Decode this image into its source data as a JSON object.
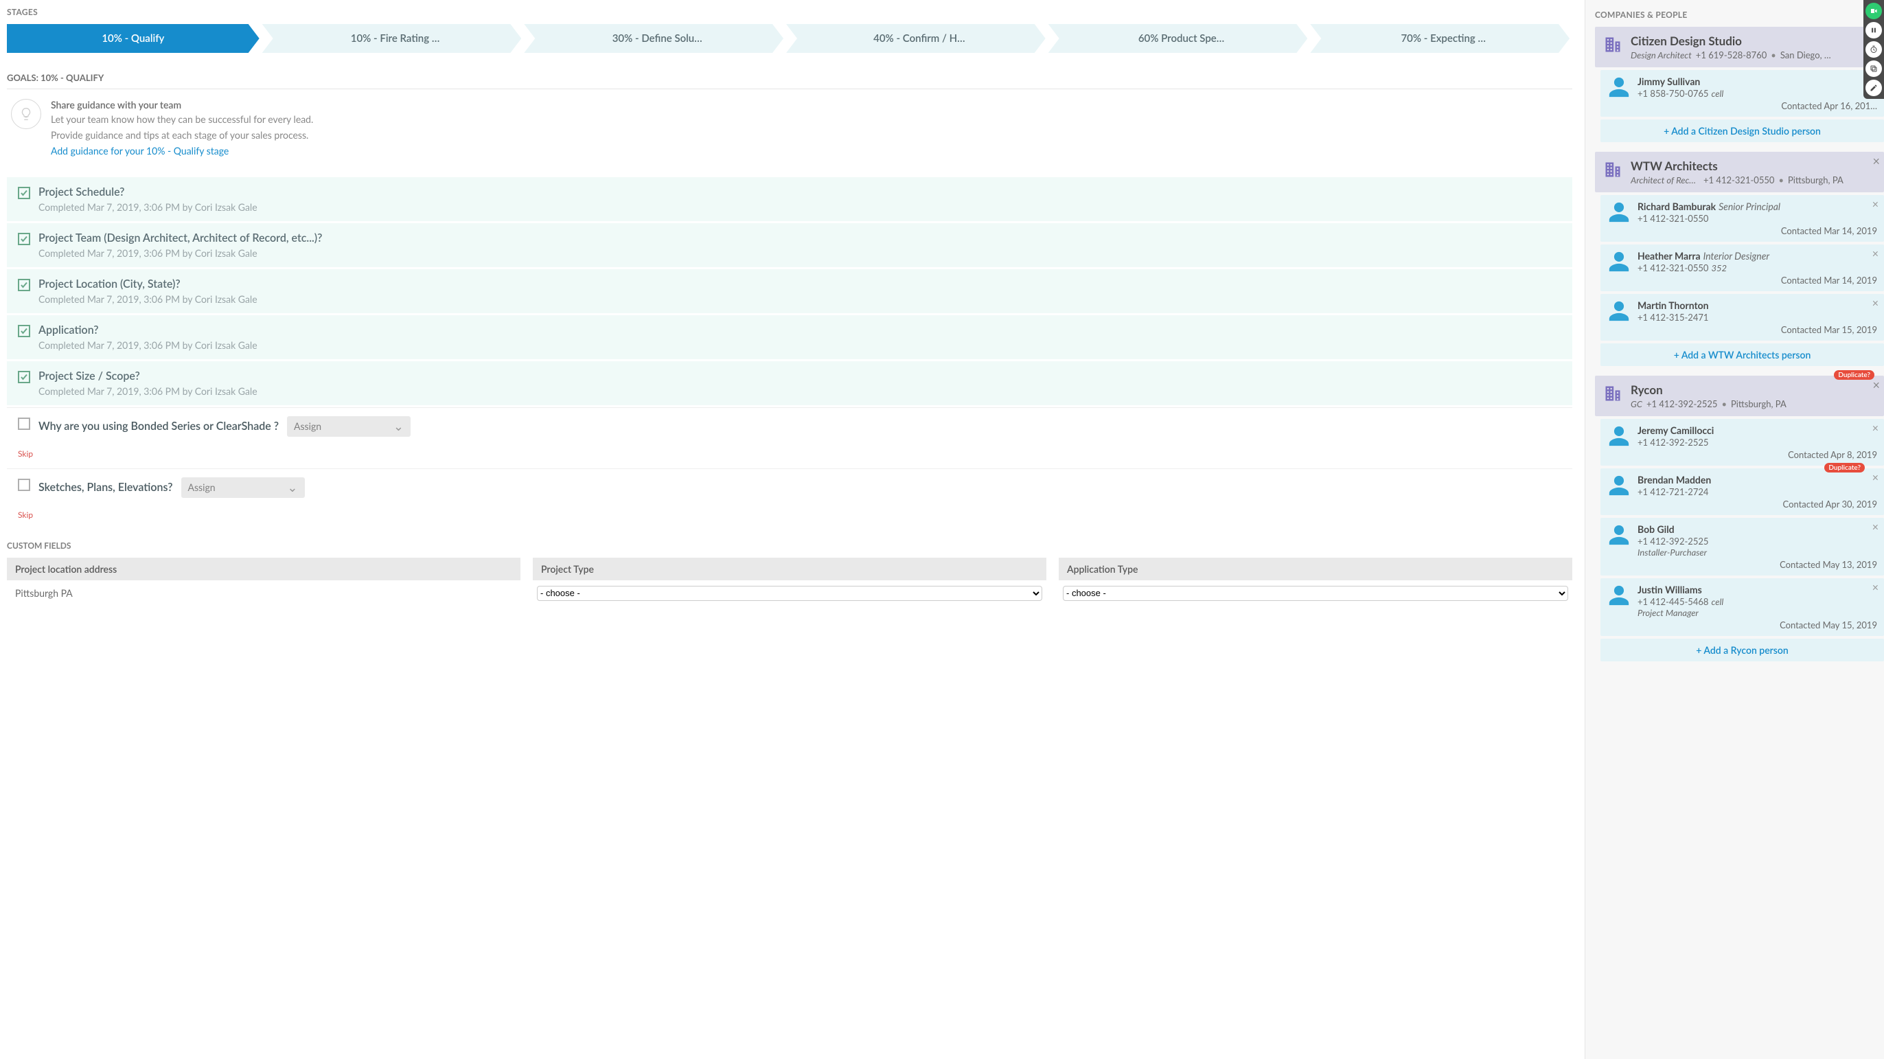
{
  "labels": {
    "stages": "STAGES",
    "goals_prefix": "GOALS: ",
    "companies_people": "COMPANIES & PEOPLE",
    "custom_fields": "CUSTOM FIELDS",
    "assign": "Assign",
    "skip": "Skip",
    "add_person_prefix": "+  Add a ",
    "add_person_suffix": " person",
    "choose": "- choose -"
  },
  "stages": [
    {
      "label": "10% - Qualify",
      "active": true
    },
    {
      "label": "10% - Fire Rating …",
      "active": false
    },
    {
      "label": "30% - Define Solu…",
      "active": false
    },
    {
      "label": "40% - Confirm / H…",
      "active": false
    },
    {
      "label": "60% Product Spe…",
      "active": false
    },
    {
      "label": "70% - Expecting …",
      "active": false
    }
  ],
  "current_stage_name": "10% - QUALIFY",
  "guidance": {
    "title": "Share guidance with your team",
    "body_line1": "Let your team know how they can be successful for every lead.",
    "body_line2": "Provide guidance and tips at each stage of your sales process.",
    "link": "Add guidance for your 10% - Qualify stage"
  },
  "goals": [
    {
      "title": "Project Schedule?",
      "done": true,
      "meta": "Completed Mar 7, 2019, 3:06 PM by Cori Izsak Gale"
    },
    {
      "title": "Project Team (Design Architect, Architect of Record, etc...)?",
      "done": true,
      "meta": "Completed Mar 7, 2019, 3:06 PM by Cori Izsak Gale"
    },
    {
      "title": "Project Location (City, State)?",
      "done": true,
      "meta": "Completed Mar 7, 2019, 3:06 PM by Cori Izsak Gale"
    },
    {
      "title": "Application?",
      "done": true,
      "meta": "Completed Mar 7, 2019, 3:06 PM by Cori Izsak Gale"
    },
    {
      "title": "Project Size / Scope?",
      "done": true,
      "meta": "Completed Mar 7, 2019, 3:06 PM by Cori Izsak Gale"
    },
    {
      "title": "Why are you using Bonded Series or ClearShade ?",
      "done": false
    },
    {
      "title": "Sketches, Plans, Elevations?",
      "done": false
    }
  ],
  "custom_fields": [
    {
      "label": "Project location address",
      "type": "text",
      "value": "Pittsburgh PA"
    },
    {
      "label": "Project Type",
      "type": "select",
      "value": "- choose -"
    },
    {
      "label": "Application Type",
      "type": "select",
      "value": "- choose -"
    }
  ],
  "companies": [
    {
      "name": "Citizen Design Studio",
      "role": "Design Architect",
      "phone": "+1 619-528-8760",
      "location": "San Diego, …",
      "closable": false,
      "people": [
        {
          "name": "Jimmy Sullivan",
          "phone": "+1 858-750-0765",
          "ext": "cell",
          "contacted": "Contacted Apr 16, 201…",
          "closable": false
        }
      ]
    },
    {
      "name": "WTW Architects",
      "role": "Architect of Reco…",
      "phone": "+1 412-321-0550",
      "location": "Pittsburgh, PA",
      "closable": true,
      "people": [
        {
          "name": "Richard Bamburak",
          "title": "Senior Principal",
          "phone": "+1 412-321-0550",
          "contacted": "Contacted Mar 14, 2019",
          "closable": true
        },
        {
          "name": "Heather Marra",
          "title": "Interior Designer",
          "phone": "+1 412-321-0550",
          "ext": "352",
          "contacted": "Contacted Mar 14, 2019",
          "closable": true
        },
        {
          "name": "Martin Thornton",
          "phone": "+1 412-315-2471",
          "contacted": "Contacted Mar 15, 2019",
          "closable": true
        }
      ]
    },
    {
      "name": "Rycon",
      "role": "GC",
      "phone": "+1 412-392-2525",
      "location": "Pittsburgh, PA",
      "duplicate": true,
      "closable": true,
      "people": [
        {
          "name": "Jeremy Camillocci",
          "phone": "+1 412-392-2525",
          "contacted": "Contacted Apr 8, 2019",
          "closable": true
        },
        {
          "name": "Brendan Madden",
          "phone": "+1 412-721-2724",
          "contacted": "Contacted Apr 30, 2019",
          "duplicate": true,
          "closable": true
        },
        {
          "name": "Bob Gild",
          "phone": "+1 412-392-2525",
          "subtitle": "Installer-Purchaser",
          "contacted": "Contacted May 13, 2019",
          "closable": true
        },
        {
          "name": "Justin Williams",
          "phone": "+1 412-445-5468",
          "ext": "cell",
          "subtitle": "Project Manager",
          "contacted": "Contacted May 15, 2019",
          "closable": true
        }
      ]
    }
  ],
  "colors": {
    "stage_active_bg": "#168ccc",
    "stage_inactive_bg": "#e9f5f7",
    "goal_done_bg": "#f0faf8",
    "check_green": "#6aa88a",
    "link": "#168ccc",
    "company_header_bg": "#dcdce9",
    "company_icon": "#7a6fbf",
    "person_bg": "#e4f3f7",
    "person_icon": "#2fa3d6",
    "duplicate_badge": "#e74c3c",
    "skip_red": "#d9534f"
  },
  "duplicate_label": "Duplicate?"
}
